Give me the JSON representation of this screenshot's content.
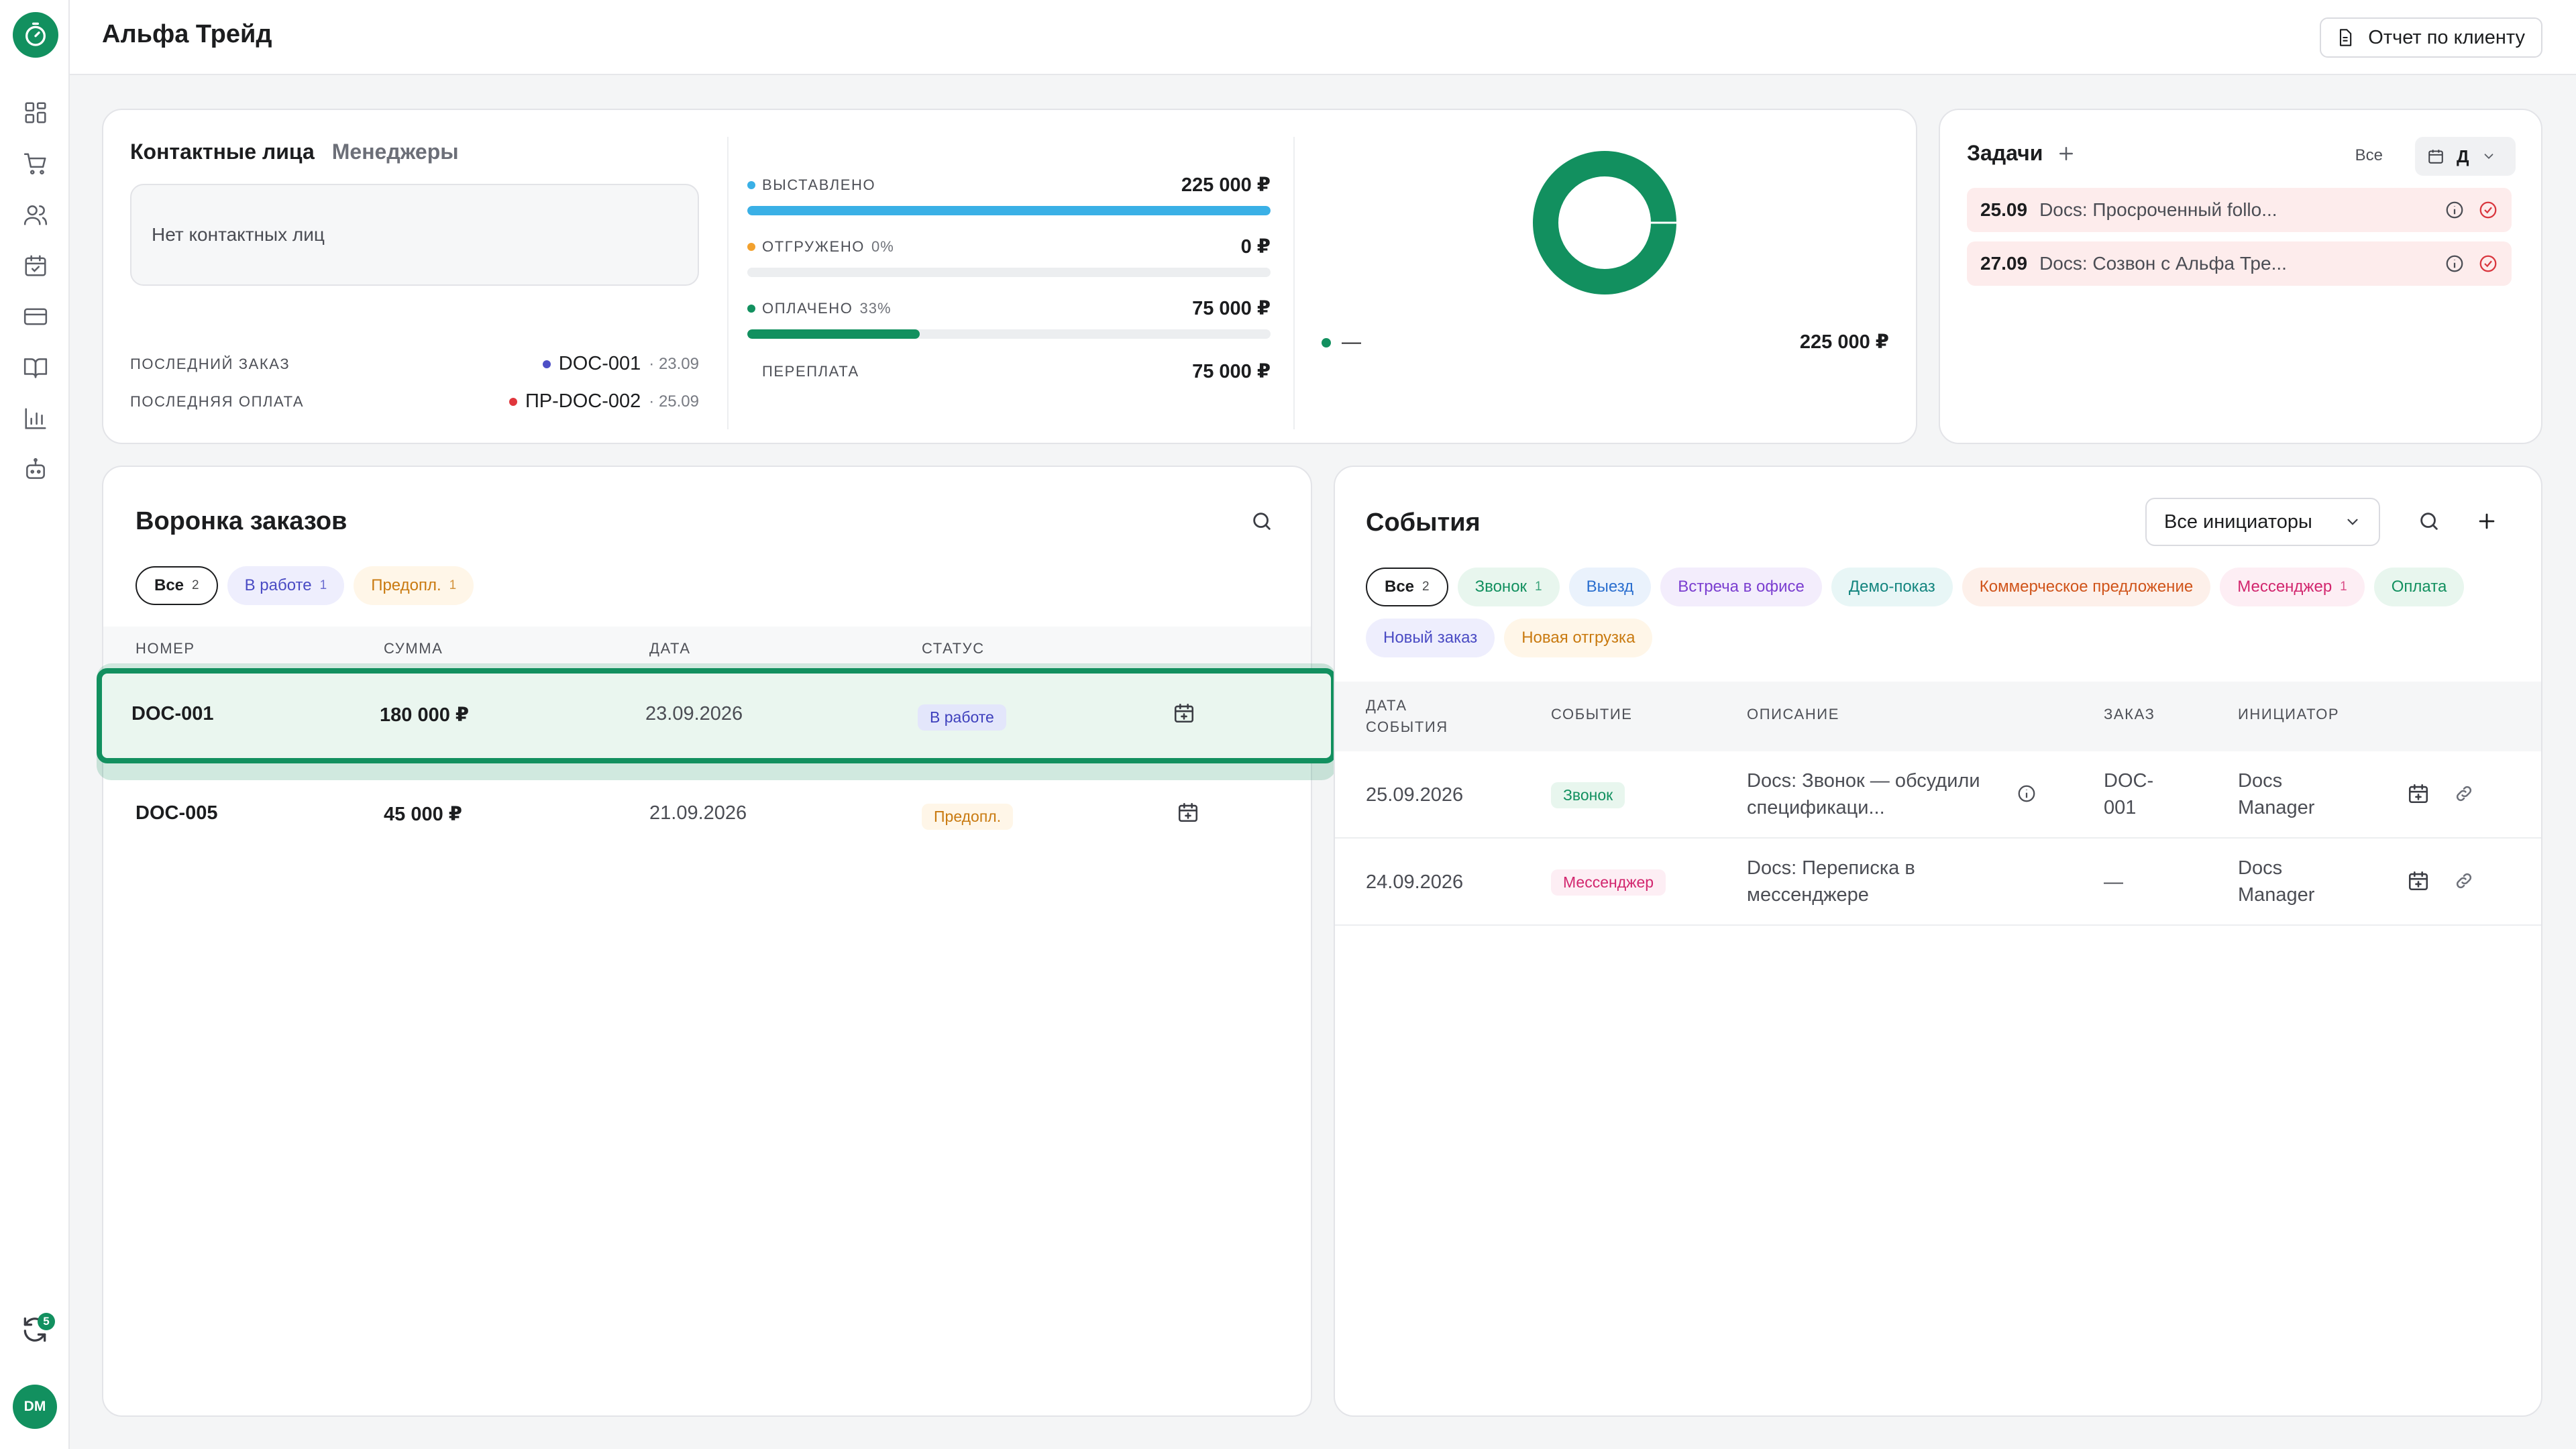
{
  "app": {
    "title": "Альфа Трейд",
    "report_button": "Отчет по клиенту",
    "brand_color": "#12905f"
  },
  "sidebar": {
    "icons": [
      "timer-logo-icon",
      "dashboard-icon",
      "cart-icon",
      "users-icon",
      "calendar-check-icon",
      "card-icon",
      "book-icon",
      "chart-icon",
      "bot-icon"
    ],
    "sync_badge": "5",
    "avatar": "DM"
  },
  "contacts": {
    "tab_active": "Контактные лица",
    "tab_inactive": "Менеджеры",
    "empty_text": "Нет контактных лиц",
    "last_order_label": "ПОСЛЕДНИЙ ЗАКАЗ",
    "last_order_value": "DOC-001",
    "last_order_date": "· 23.09",
    "last_payment_label": "ПОСЛЕДНЯЯ ОПЛАТА",
    "last_payment_value": "ПР-DOC-002",
    "last_payment_date": "· 25.09"
  },
  "finance": {
    "rows": [
      {
        "label": "ВЫСТАВЛЕНО",
        "pct": "",
        "amount": "225 000 ₽",
        "fill": 1.0,
        "color": "#3ab0e6"
      },
      {
        "label": "ОТГРУЖЕНО",
        "pct": "0%",
        "amount": "0 ₽",
        "fill": 0.0,
        "color": "#f2a12e"
      },
      {
        "label": "ОПЛАЧЕНО",
        "pct": "33%",
        "amount": "75 000 ₽",
        "fill": 0.33,
        "color": "#12905f"
      },
      {
        "label": "ПЕРЕПЛАТА",
        "pct": "",
        "amount": "75 000 ₽",
        "fill": null,
        "color": ""
      }
    ]
  },
  "donut": {
    "legend_label": "—",
    "total": "225 000 ₽"
  },
  "tasks": {
    "title": "Задачи",
    "filter_label": "Все",
    "view_value": "Д",
    "items": [
      {
        "date": "25.09",
        "text": "Docs: Просроченный follo..."
      },
      {
        "date": "27.09",
        "text": "Docs: Созвон с Альфа Тре..."
      }
    ]
  },
  "funnel": {
    "title": "Воронка заказов",
    "filters": [
      {
        "label": "Все",
        "count": "2"
      },
      {
        "label": "В работе",
        "count": "1"
      },
      {
        "label": "Предопл.",
        "count": "1"
      }
    ],
    "columns": [
      "НОМЕР",
      "СУММА",
      "ДАТА",
      "СТАТУС"
    ],
    "rows": [
      {
        "number": "DOC-001",
        "sum": "180 000 ₽",
        "date": "23.09.2026",
        "status": "В работе"
      },
      {
        "number": "DOC-005",
        "sum": "45 000 ₽",
        "date": "21.09.2026",
        "status": "Предопл."
      }
    ]
  },
  "events": {
    "title": "События",
    "initiator_select": "Все инициаторы",
    "filters": [
      {
        "label": "Все",
        "count": "2"
      },
      {
        "label": "Звонок",
        "count": "1"
      },
      {
        "label": "Выезд",
        "count": ""
      },
      {
        "label": "Встреча в офисе",
        "count": ""
      },
      {
        "label": "Демо-показ",
        "count": ""
      },
      {
        "label": "Коммерческое предложение",
        "count": ""
      },
      {
        "label": "Мессенджер",
        "count": "1"
      },
      {
        "label": "Оплата",
        "count": ""
      },
      {
        "label": "Новый заказ",
        "count": ""
      },
      {
        "label": "Новая отгрузка",
        "count": ""
      }
    ],
    "columns": {
      "date_line1": "ДАТА",
      "date_line2": "СОБЫТИЯ",
      "event": "СОБЫТИЕ",
      "description": "ОПИСАНИЕ",
      "order": "ЗАКАЗ",
      "initiator": "ИНИЦИАТОР"
    },
    "rows": [
      {
        "date": "25.09.2026",
        "type": "Звонок",
        "desc1": "Docs: Звонок — обсудили",
        "desc2": "спецификаци...",
        "order1": "DOC-",
        "order2": "001",
        "init1": "Docs",
        "init2": "Manager"
      },
      {
        "date": "24.09.2026",
        "type": "Мессенджер",
        "desc1": "Docs: Переписка в",
        "desc2": "мессенджере",
        "order1": "—",
        "order2": "",
        "init1": "Docs",
        "init2": "Manager"
      }
    ]
  }
}
